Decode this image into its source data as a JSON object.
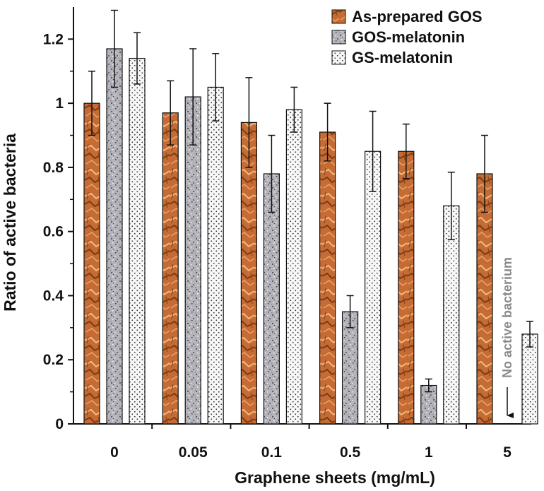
{
  "chart_data": {
    "type": "bar",
    "title": "",
    "xlabel": "Graphene sheets (mg/mL)",
    "ylabel": "Ratio of active bacteria",
    "categories": [
      "0",
      "0.05",
      "0.1",
      "0.5",
      "1",
      "5"
    ],
    "ylim": [
      0,
      1.3
    ],
    "yticks": [
      0,
      0.2,
      0.4,
      0.6,
      0.8,
      1,
      1.2
    ],
    "ytick_labels": [
      "0",
      "0.2",
      "0.4",
      "0.6",
      "0.8",
      "1",
      "1.2"
    ],
    "grid": false,
    "legend_position": "top-right",
    "series": [
      {
        "name": "As-prepared GOS",
        "values": [
          1.0,
          0.97,
          0.94,
          0.91,
          0.85,
          0.78
        ],
        "errors": [
          0.1,
          0.1,
          0.14,
          0.09,
          0.085,
          0.12
        ],
        "color": "#c8713a",
        "pattern": "crumpled-copper"
      },
      {
        "name": "GOS-melatonin",
        "values": [
          1.17,
          1.02,
          0.78,
          0.35,
          0.12,
          null
        ],
        "errors": [
          0.12,
          0.15,
          0.12,
          0.05,
          0.02,
          null
        ],
        "color": "#a9a9b0",
        "pattern": "granite-speckle"
      },
      {
        "name": "GS-melatonin",
        "values": [
          1.14,
          1.05,
          0.98,
          0.85,
          0.68,
          0.28
        ],
        "errors": [
          0.08,
          0.105,
          0.07,
          0.125,
          0.105,
          0.04
        ],
        "color": "#f6f6f6",
        "pattern": "dots"
      }
    ],
    "annotations": [
      {
        "text": "No active bacterium",
        "category": "5",
        "series": "GOS-melatonin",
        "arrow": "down"
      }
    ]
  }
}
